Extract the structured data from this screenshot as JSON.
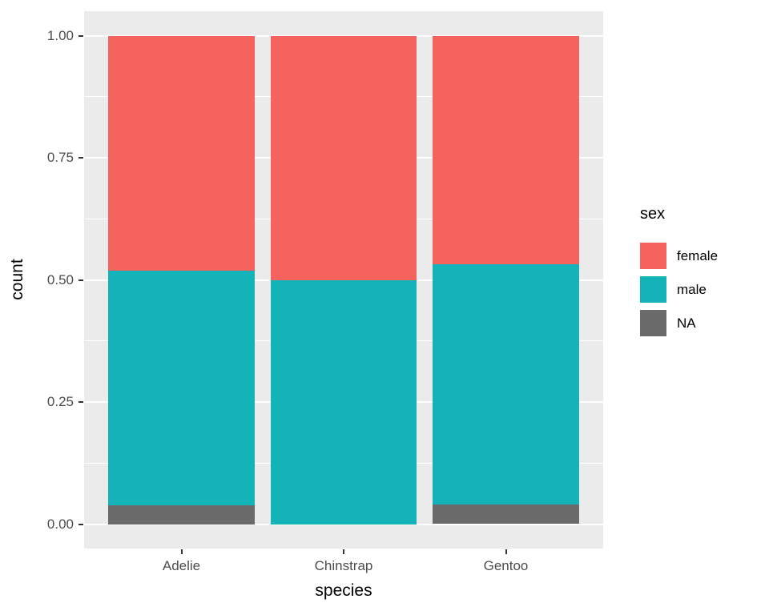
{
  "chart_data": {
    "type": "bar",
    "subtype": "stacked-filled-proportion",
    "title": "",
    "xlabel": "species",
    "ylabel": "count",
    "categories": [
      "Adelie",
      "Chinstrap",
      "Gentoo"
    ],
    "series": [
      {
        "name": "NA",
        "color": "#6A6A6A",
        "values": [
          0.0394,
          0.0,
          0.0403
        ]
      },
      {
        "name": "male",
        "color": "#14B3B9",
        "values": [
          0.4803,
          0.5,
          0.4919
        ]
      },
      {
        "name": "female",
        "color": "#F4635D",
        "values": [
          0.4803,
          0.5,
          0.4678
        ]
      }
    ],
    "stack_order_bottom_to_top": [
      "NA",
      "male",
      "female"
    ],
    "ylim": [
      0,
      1
    ],
    "yticks": [
      "0.00",
      "0.25",
      "0.50",
      "0.75",
      "1.00"
    ],
    "grid": "major-and-minor-horizontal",
    "panel_background": "#EBEBEB",
    "gridline_color": "#FFFFFF",
    "legend": {
      "title": "sex",
      "entries": [
        "female",
        "male",
        "NA"
      ],
      "position": "right"
    }
  }
}
